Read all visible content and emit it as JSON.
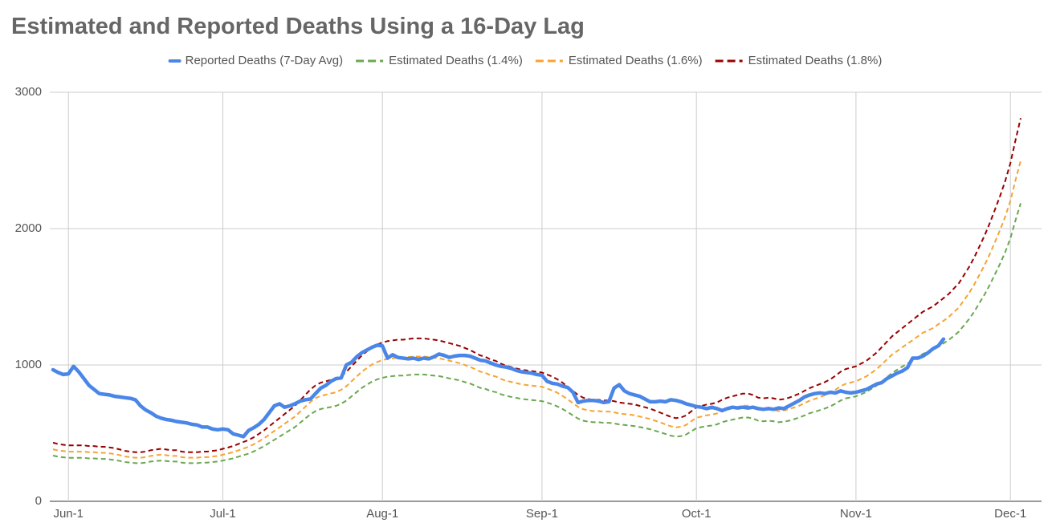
{
  "chart_data": {
    "type": "line",
    "title": "Estimated and Reported Deaths Using a 16-Day Lag",
    "categories": [
      null,
      null,
      null,
      "Jun-1",
      null,
      null,
      null,
      null,
      null,
      null,
      null,
      null,
      null,
      null,
      null,
      null,
      null,
      null,
      null,
      null,
      null,
      null,
      null,
      null,
      null,
      null,
      null,
      null,
      null,
      null,
      null,
      null,
      null,
      "Jul-1",
      null,
      null,
      null,
      null,
      null,
      null,
      null,
      null,
      null,
      null,
      null,
      null,
      null,
      null,
      null,
      null,
      null,
      null,
      null,
      null,
      null,
      null,
      null,
      null,
      null,
      null,
      null,
      null,
      null,
      null,
      "Aug-1",
      null,
      null,
      null,
      null,
      null,
      null,
      null,
      null,
      null,
      null,
      null,
      null,
      null,
      null,
      null,
      null,
      null,
      null,
      null,
      null,
      null,
      null,
      null,
      null,
      null,
      null,
      null,
      null,
      null,
      null,
      "Sep-1",
      null,
      null,
      null,
      null,
      null,
      null,
      null,
      null,
      null,
      null,
      null,
      null,
      null,
      null,
      null,
      null,
      null,
      null,
      null,
      null,
      null,
      null,
      null,
      null,
      null,
      null,
      null,
      null,
      null,
      "Oct-1",
      null,
      null,
      null,
      null,
      null,
      null,
      null,
      null,
      null,
      null,
      null,
      null,
      null,
      null,
      null,
      null,
      null,
      null,
      null,
      null,
      null,
      null,
      null,
      null,
      null,
      null,
      null,
      null,
      null,
      null,
      "Nov-1",
      null,
      null,
      null,
      null,
      null,
      null,
      null,
      null,
      null,
      null,
      null,
      null,
      null,
      null,
      null,
      null,
      null,
      null,
      null,
      null,
      null,
      null,
      null,
      null,
      null,
      null,
      null,
      null,
      null,
      "Dec-1",
      null,
      null
    ],
    "series": [
      {
        "name": "Reported Deaths (7-Day Avg)",
        "color": "#4a86e8",
        "dashed": false,
        "values": [
          965,
          945,
          930,
          935,
          990,
          950,
          900,
          850,
          820,
          790,
          785,
          780,
          770,
          765,
          760,
          755,
          745,
          700,
          670,
          650,
          625,
          610,
          600,
          595,
          585,
          580,
          575,
          565,
          560,
          545,
          545,
          530,
          525,
          530,
          525,
          495,
          485,
          475,
          520,
          540,
          565,
          600,
          650,
          700,
          715,
          690,
          700,
          715,
          735,
          745,
          750,
          790,
          830,
          850,
          880,
          900,
          905,
          1000,
          1020,
          1060,
          1090,
          1110,
          1130,
          1145,
          1140,
          1050,
          1075,
          1055,
          1050,
          1045,
          1050,
          1040,
          1050,
          1045,
          1060,
          1080,
          1070,
          1055,
          1065,
          1070,
          1070,
          1065,
          1050,
          1035,
          1030,
          1015,
          1000,
          990,
          985,
          975,
          960,
          950,
          945,
          940,
          930,
          925,
          880,
          865,
          860,
          845,
          835,
          800,
          725,
          735,
          740,
          740,
          735,
          725,
          730,
          830,
          855,
          810,
          790,
          780,
          770,
          750,
          730,
          730,
          735,
          730,
          745,
          740,
          730,
          715,
          705,
          695,
          690,
          680,
          690,
          680,
          665,
          680,
          690,
          685,
          690,
          685,
          690,
          680,
          675,
          680,
          675,
          685,
          680,
          700,
          720,
          740,
          765,
          780,
          790,
          795,
          790,
          800,
          795,
          810,
          800,
          795,
          800,
          810,
          820,
          840,
          860,
          870,
          900,
          920,
          940,
          955,
          980,
          1050,
          1050,
          1065,
          1090,
          1120,
          1140,
          1190,
          null,
          null,
          null,
          null,
          null,
          null,
          null,
          null,
          null,
          null,
          null,
          null,
          null,
          null,
          null
        ]
      },
      {
        "name": "Estimated Deaths (1.4%)",
        "color": "#6aa84f",
        "dashed": true,
        "values": [
          335,
          327,
          323,
          319,
          319,
          319,
          319,
          315,
          315,
          311,
          311,
          307,
          303,
          296,
          288,
          284,
          280,
          280,
          284,
          292,
          296,
          299,
          296,
          292,
          292,
          284,
          280,
          280,
          280,
          284,
          284,
          288,
          292,
          299,
          307,
          315,
          327,
          338,
          350,
          366,
          385,
          404,
          428,
          451,
          474,
          498,
          521,
          545,
          576,
          607,
          638,
          661,
          677,
          684,
          692,
          700,
          716,
          739,
          770,
          801,
          832,
          856,
          879,
          895,
          906,
          914,
          918,
          922,
          922,
          926,
          930,
          930,
          930,
          926,
          922,
          918,
          910,
          902,
          895,
          887,
          875,
          864,
          848,
          832,
          825,
          809,
          801,
          786,
          774,
          766,
          759,
          751,
          747,
          743,
          739,
          735,
          724,
          712,
          696,
          677,
          654,
          630,
          607,
          591,
          584,
          580,
          580,
          576,
          576,
          572,
          564,
          560,
          556,
          552,
          545,
          537,
          529,
          517,
          506,
          494,
          482,
          475,
          478,
          490,
          513,
          537,
          545,
          552,
          556,
          564,
          580,
          591,
          599,
          607,
          615,
          615,
          607,
          591,
          587,
          591,
          587,
          580,
          584,
          591,
          603,
          615,
          630,
          646,
          657,
          669,
          681,
          696,
          716,
          739,
          755,
          762,
          770,
          786,
          801,
          825,
          848,
          879,
          910,
          941,
          965,
          988,
          1011,
          1035,
          1058,
          1081,
          1097,
          1113,
          1136,
          1159,
          1183,
          1213,
          1245,
          1291,
          1338,
          1392,
          1455,
          1517,
          1587,
          1665,
          1743,
          1828,
          1929,
          2062,
          2186
        ]
      },
      {
        "name": "Estimated Deaths (1.6%)",
        "color": "#f6a431",
        "dashed": true,
        "values": [
          382,
          373,
          369,
          364,
          364,
          364,
          364,
          360,
          360,
          356,
          356,
          351,
          347,
          338,
          329,
          324,
          320,
          320,
          324,
          333,
          338,
          342,
          338,
          333,
          333,
          324,
          320,
          320,
          320,
          324,
          324,
          329,
          333,
          342,
          351,
          360,
          373,
          387,
          400,
          418,
          440,
          462,
          489,
          516,
          542,
          569,
          596,
          622,
          658,
          693,
          729,
          756,
          773,
          782,
          791,
          800,
          818,
          844,
          880,
          916,
          951,
          978,
          1004,
          1022,
          1036,
          1044,
          1049,
          1053,
          1053,
          1058,
          1062,
          1062,
          1062,
          1058,
          1053,
          1049,
          1040,
          1031,
          1022,
          1013,
          1000,
          987,
          969,
          951,
          942,
          924,
          916,
          898,
          884,
          876,
          867,
          858,
          853,
          849,
          844,
          840,
          827,
          813,
          796,
          773,
          747,
          720,
          693,
          676,
          667,
          662,
          662,
          658,
          658,
          653,
          644,
          640,
          636,
          631,
          622,
          613,
          604,
          591,
          578,
          564,
          551,
          542,
          547,
          560,
          587,
          613,
          622,
          631,
          636,
          644,
          662,
          676,
          684,
          693,
          702,
          702,
          693,
          676,
          671,
          676,
          671,
          662,
          667,
          676,
          689,
          702,
          720,
          738,
          751,
          764,
          778,
          796,
          818,
          844,
          862,
          871,
          880,
          898,
          916,
          942,
          969,
          1004,
          1040,
          1076,
          1102,
          1129,
          1156,
          1182,
          1209,
          1236,
          1253,
          1271,
          1298,
          1324,
          1351,
          1387,
          1422,
          1476,
          1529,
          1591,
          1662,
          1733,
          1813,
          1902,
          1991,
          2089,
          2204,
          2356,
          2498
        ]
      },
      {
        "name": "Estimated Deaths (1.8%)",
        "color": "#990000",
        "dashed": true,
        "values": [
          430,
          420,
          415,
          410,
          410,
          410,
          410,
          405,
          405,
          400,
          400,
          395,
          390,
          380,
          370,
          365,
          360,
          360,
          365,
          375,
          380,
          385,
          380,
          375,
          375,
          365,
          360,
          360,
          360,
          365,
          365,
          370,
          375,
          385,
          395,
          405,
          420,
          435,
          450,
          470,
          495,
          520,
          550,
          580,
          610,
          640,
          670,
          700,
          740,
          780,
          820,
          850,
          870,
          880,
          890,
          900,
          920,
          950,
          990,
          1030,
          1070,
          1100,
          1130,
          1150,
          1165,
          1175,
          1180,
          1185,
          1185,
          1190,
          1195,
          1195,
          1195,
          1190,
          1185,
          1180,
          1170,
          1160,
          1150,
          1140,
          1125,
          1110,
          1090,
          1070,
          1060,
          1040,
          1030,
          1010,
          995,
          985,
          975,
          965,
          960,
          955,
          950,
          945,
          930,
          915,
          895,
          870,
          840,
          810,
          780,
          760,
          750,
          745,
          745,
          740,
          740,
          735,
          725,
          720,
          715,
          710,
          700,
          690,
          680,
          665,
          650,
          635,
          620,
          610,
          615,
          630,
          660,
          690,
          700,
          710,
          715,
          725,
          745,
          760,
          770,
          780,
          790,
          790,
          780,
          760,
          755,
          760,
          755,
          745,
          750,
          760,
          775,
          790,
          810,
          830,
          845,
          860,
          875,
          895,
          920,
          950,
          970,
          980,
          990,
          1010,
          1030,
          1060,
          1090,
          1130,
          1170,
          1210,
          1240,
          1270,
          1300,
          1330,
          1360,
          1390,
          1410,
          1430,
          1460,
          1490,
          1520,
          1560,
          1600,
          1660,
          1720,
          1790,
          1870,
          1950,
          2040,
          2140,
          2240,
          2350,
          2480,
          2650,
          2810
        ]
      }
    ],
    "ylim": [
      0,
      3000
    ],
    "yticks": [
      0,
      1000,
      2000,
      3000
    ],
    "grid": true,
    "legend": "top"
  }
}
